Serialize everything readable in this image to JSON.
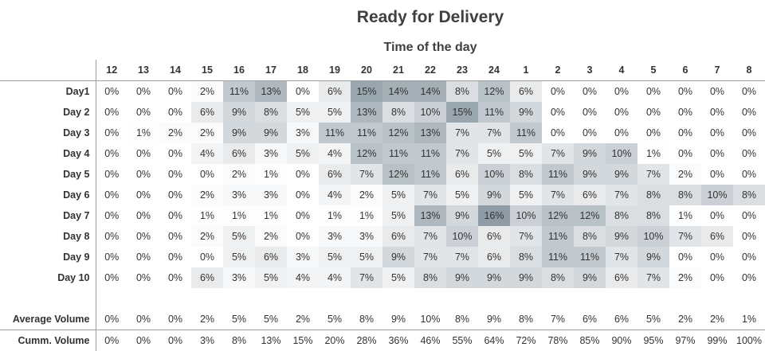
{
  "title": "Ready for Delivery",
  "subtitle": "Time of the day",
  "colors": {
    "heat_low": "#ffffff",
    "heat_high": "#8f9ca5"
  },
  "chart_data": {
    "type": "heatmap",
    "title": "Ready for Delivery",
    "xlabel": "Time of the day",
    "x": [
      "12",
      "13",
      "14",
      "15",
      "16",
      "17",
      "18",
      "19",
      "20",
      "21",
      "22",
      "23",
      "24",
      "1",
      "2",
      "3",
      "4",
      "5",
      "6",
      "7",
      "8"
    ],
    "y": [
      "Day1",
      "Day 2",
      "Day 3",
      "Day 4",
      "Day 5",
      "Day 6",
      "Day 7",
      "Day 8",
      "Day 9",
      "Day 10"
    ],
    "values": [
      [
        0,
        0,
        0,
        2,
        11,
        13,
        0,
        6,
        15,
        14,
        14,
        8,
        12,
        6,
        0,
        0,
        0,
        0,
        0,
        0,
        0
      ],
      [
        0,
        0,
        0,
        6,
        9,
        8,
        5,
        5,
        13,
        8,
        10,
        15,
        11,
        9,
        0,
        0,
        0,
        0,
        0,
        0,
        0
      ],
      [
        0,
        1,
        2,
        2,
        9,
        9,
        3,
        11,
        11,
        12,
        13,
        7,
        7,
        11,
        0,
        0,
        0,
        0,
        0,
        0,
        0
      ],
      [
        0,
        0,
        0,
        4,
        6,
        3,
        5,
        4,
        12,
        11,
        11,
        7,
        5,
        5,
        7,
        9,
        10,
        1,
        0,
        0,
        0
      ],
      [
        0,
        0,
        0,
        0,
        2,
        1,
        0,
        6,
        7,
        12,
        11,
        6,
        10,
        8,
        11,
        9,
        9,
        7,
        2,
        0,
        0
      ],
      [
        0,
        0,
        0,
        2,
        3,
        3,
        0,
        4,
        2,
        5,
        7,
        5,
        9,
        5,
        7,
        6,
        7,
        8,
        8,
        10,
        8
      ],
      [
        0,
        0,
        0,
        1,
        1,
        1,
        0,
        1,
        1,
        5,
        13,
        9,
        16,
        10,
        12,
        12,
        8,
        8,
        1,
        0,
        0
      ],
      [
        0,
        0,
        0,
        2,
        5,
        2,
        0,
        3,
        3,
        6,
        7,
        10,
        6,
        7,
        11,
        8,
        9,
        10,
        7,
        6,
        0
      ],
      [
        0,
        0,
        0,
        0,
        5,
        6,
        3,
        5,
        5,
        9,
        7,
        7,
        6,
        8,
        11,
        11,
        7,
        9,
        0,
        0,
        0
      ],
      [
        0,
        0,
        0,
        6,
        3,
        5,
        4,
        4,
        7,
        5,
        8,
        9,
        9,
        9,
        8,
        9,
        6,
        7,
        2,
        0,
        0
      ]
    ],
    "value_format": "percent",
    "color_range": [
      0,
      16
    ],
    "summary_rows": [
      {
        "label": "Average Volume",
        "values": [
          "0%",
          "0%",
          "0%",
          "2%",
          "5%",
          "5%",
          "2%",
          "5%",
          "8%",
          "9%",
          "10%",
          "8%",
          "9%",
          "8%",
          "7%",
          "6%",
          "6%",
          "5%",
          "2%",
          "2%",
          "1%"
        ]
      },
      {
        "label": "Cumm. Volume",
        "values": [
          "0%",
          "0%",
          "0%",
          "3%",
          "8%",
          "13%",
          "15%",
          "20%",
          "28%",
          "36%",
          "46%",
          "55%",
          "64%",
          "72%",
          "78%",
          "85%",
          "90%",
          "95%",
          "97%",
          "99%",
          "100%"
        ]
      }
    ]
  }
}
